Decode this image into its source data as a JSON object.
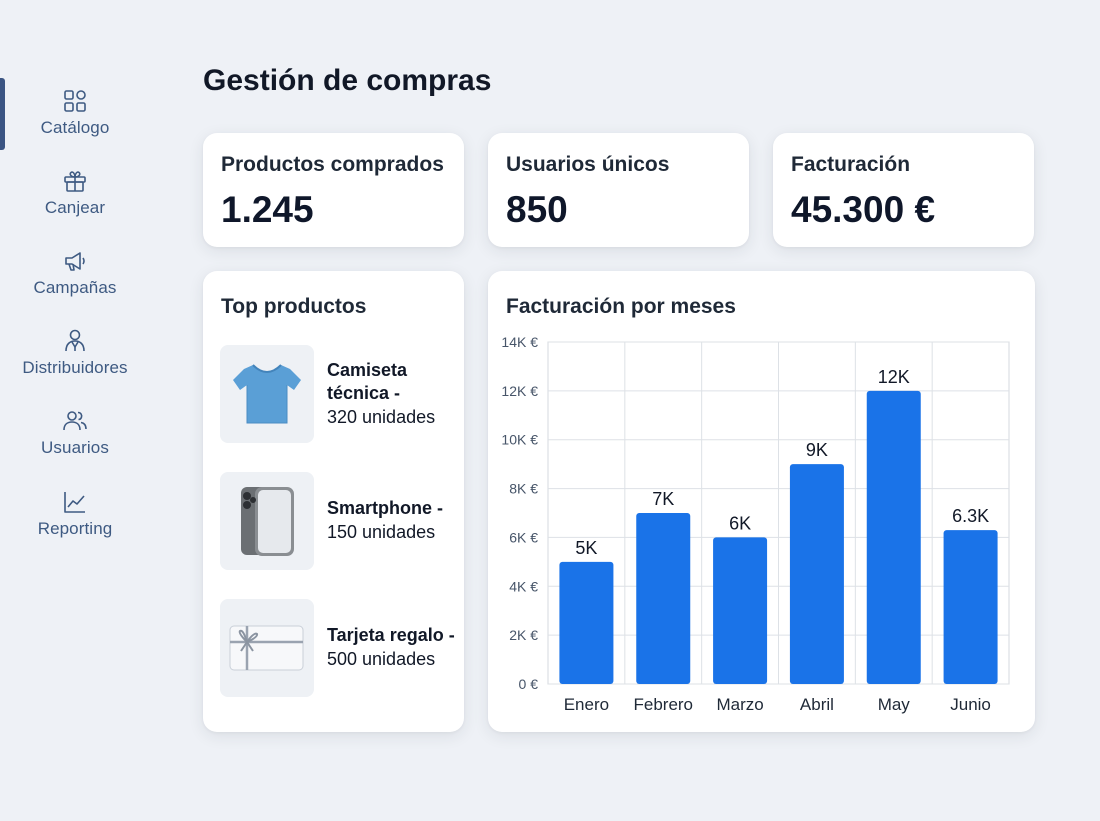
{
  "sidebar": {
    "items": [
      {
        "label": "Catálogo",
        "icon": "grid-icon"
      },
      {
        "label": "Canjear",
        "icon": "gift-icon"
      },
      {
        "label": "Campañas",
        "icon": "megaphone-icon"
      },
      {
        "label": "Distribuidores",
        "icon": "distributor-icon"
      },
      {
        "label": "Usuarios",
        "icon": "users-icon"
      },
      {
        "label": "Reporting",
        "icon": "line-chart-icon"
      }
    ],
    "active_index": 0
  },
  "header": {
    "title": "Gestión de compras"
  },
  "stats": [
    {
      "title": "Productos comprados",
      "value": "1.245"
    },
    {
      "title": "Usuarios únicos",
      "value": "850"
    },
    {
      "title": "Facturación",
      "value": "45.300 €"
    }
  ],
  "top_products": {
    "title": "Top productos",
    "items": [
      {
        "name": "Camiseta técnica -",
        "qty": "320 unidades",
        "icon": "tshirt-icon"
      },
      {
        "name": "Smartphone -",
        "qty": "150 unidades",
        "icon": "smartphone-icon"
      },
      {
        "name": "Tarjeta regalo -",
        "qty": "500 unidades",
        "icon": "gift-card-icon"
      }
    ]
  },
  "chart_panel": {
    "title": "Facturación por meses"
  },
  "chart_data": {
    "type": "bar",
    "title": "Facturación por meses",
    "categories": [
      "Enero",
      "Febrero",
      "Marzo",
      "Abril",
      "May",
      "Junio"
    ],
    "values": [
      5000,
      7000,
      6000,
      9000,
      12000,
      6300
    ],
    "data_labels": [
      "5K",
      "7K",
      "6K",
      "9K",
      "12K",
      "6.3K"
    ],
    "y_ticks": [
      0,
      2000,
      4000,
      6000,
      8000,
      10000,
      12000,
      14000
    ],
    "y_tick_labels": [
      "0 €",
      "2K €",
      "4K €",
      "6K €",
      "8K €",
      "10K €",
      "12K €",
      "14K €"
    ],
    "ylim": [
      0,
      14000
    ],
    "grid": true,
    "bar_color": "#1a73e8"
  },
  "colors": {
    "accent": "#3b5583",
    "sidebar_text": "#3e5a82",
    "bar": "#1a73e8"
  }
}
